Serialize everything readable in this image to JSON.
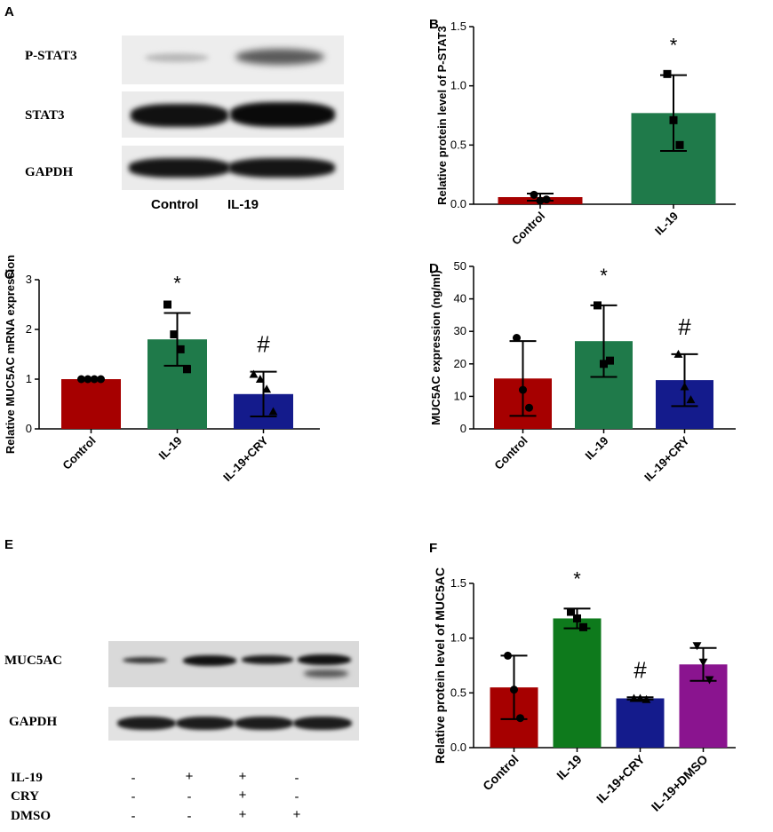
{
  "panels": {
    "A": {
      "letter": "A",
      "rows": [
        "P-STAT3",
        "STAT3",
        "GAPDH"
      ],
      "lanes": [
        "Control",
        "IL-19"
      ]
    },
    "E": {
      "letter": "E",
      "rows": [
        "MUC5AC",
        "GAPDH"
      ],
      "treatments": [
        {
          "name": "IL-19",
          "signs": [
            "-",
            "+",
            "+",
            "-"
          ]
        },
        {
          "name": "CRY",
          "signs": [
            "-",
            "-",
            "+",
            "-"
          ]
        },
        {
          "name": "DMSO",
          "signs": [
            "-",
            "-",
            "+",
            "+"
          ]
        }
      ]
    }
  },
  "chart_data": [
    {
      "id": "B",
      "letter": "B",
      "type": "bar",
      "ylabel": "Relative protein level of P-STAT3",
      "ylim": [
        0,
        1.5
      ],
      "yticks": [
        0.0,
        0.5,
        1.0,
        1.5
      ],
      "categories": [
        "Control",
        "IL-19"
      ],
      "values": [
        0.06,
        0.77
      ],
      "errors": [
        0.03,
        0.32
      ],
      "points": [
        [
          0.08,
          0.03,
          0.04
        ],
        [
          1.1,
          0.71,
          0.5
        ]
      ],
      "markers": [
        "circle",
        "square"
      ],
      "colors": [
        "#a60000",
        "#1f7a4a"
      ],
      "annotations": [
        "",
        "*"
      ]
    },
    {
      "id": "C",
      "letter": "C",
      "type": "bar",
      "ylabel": "Relative MUC5AC mRNA expression",
      "ylim": [
        0,
        3
      ],
      "yticks": [
        0,
        1,
        2,
        3
      ],
      "categories": [
        "Control",
        "IL-19",
        "IL-19+CRY"
      ],
      "values": [
        1.0,
        1.8,
        0.7
      ],
      "errors": [
        0.0,
        0.53,
        0.45
      ],
      "points": [
        [
          1.0,
          1.0,
          1.0,
          1.0
        ],
        [
          2.5,
          1.9,
          1.6,
          1.2
        ],
        [
          1.1,
          1.0,
          0.8,
          0.35
        ]
      ],
      "markers": [
        "circle",
        "square",
        "triangle"
      ],
      "colors": [
        "#a60000",
        "#1f7a4a",
        "#141b8c"
      ],
      "annotations": [
        "",
        "*",
        "#"
      ]
    },
    {
      "id": "D",
      "letter": "D",
      "type": "bar",
      "ylabel": "MUC5AC expression (ng/ml)",
      "ylim": [
        0,
        50
      ],
      "yticks": [
        0,
        10,
        20,
        30,
        40,
        50
      ],
      "categories": [
        "Control",
        "IL-19",
        "IL-19+CRY"
      ],
      "values": [
        15.5,
        27,
        15
      ],
      "errors": [
        11.5,
        11,
        8
      ],
      "points": [
        [
          28,
          12,
          6.5
        ],
        [
          38,
          20,
          21
        ],
        [
          23,
          13,
          9
        ]
      ],
      "markers": [
        "circle",
        "square",
        "triangle"
      ],
      "colors": [
        "#a60000",
        "#1f7a4a",
        "#141b8c"
      ],
      "annotations": [
        "",
        "*",
        "#"
      ]
    },
    {
      "id": "F",
      "letter": "F",
      "type": "bar",
      "ylabel": "Relative protein level of MUC5AC",
      "ylim": [
        0,
        1.5
      ],
      "yticks": [
        0.0,
        0.5,
        1.0,
        1.5
      ],
      "categories": [
        "Control",
        "IL-19",
        "IL-19+CRY",
        "IL-19+DMSO"
      ],
      "values": [
        0.55,
        1.18,
        0.45,
        0.76
      ],
      "errors": [
        0.29,
        0.09,
        0.01,
        0.15
      ],
      "points": [
        [
          0.84,
          0.53,
          0.27
        ],
        [
          1.24,
          1.18,
          1.1
        ],
        [
          0.45,
          0.45,
          0.44
        ],
        [
          0.93,
          0.78,
          0.62
        ]
      ],
      "markers": [
        "circle",
        "square",
        "triangle",
        "invtriangle"
      ],
      "colors": [
        "#a60000",
        "#0e7a1c",
        "#141b8c",
        "#8a148f"
      ],
      "annotations": [
        "",
        "*",
        "#",
        ""
      ]
    }
  ]
}
